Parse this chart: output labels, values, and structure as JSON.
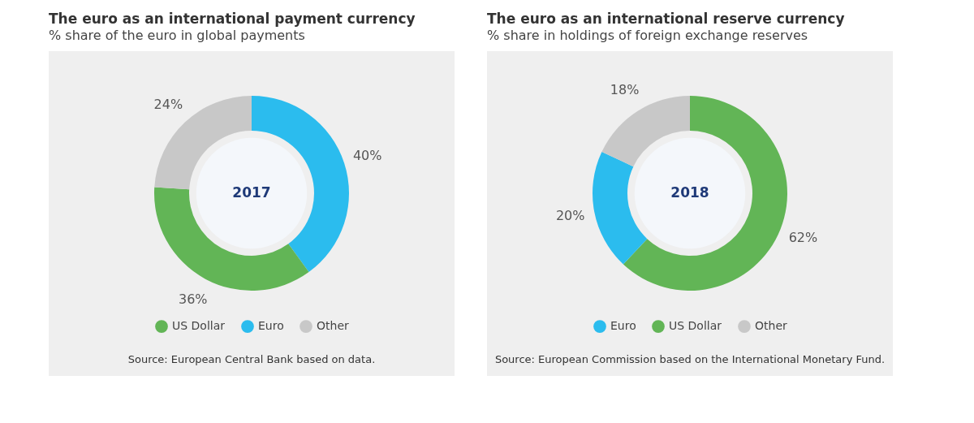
{
  "chart_data": [
    {
      "type": "donut",
      "title": "The euro as an international payment currency",
      "subtitle": "% share of the euro in global payments",
      "categories": [
        "Euro",
        "US Dollar",
        "Other"
      ],
      "values": [
        40,
        36,
        24
      ],
      "colors": [
        "#2bbcee",
        "#62b556",
        "#c8c8c8"
      ],
      "value_labels": [
        "40%",
        "36%",
        "24%"
      ],
      "legend": "bottom",
      "annotations": [
        "2017",
        "Source: European Central Bank based on data."
      ]
    },
    {
      "type": "donut",
      "title": "The euro as an international reserve currency",
      "subtitle": "% share in holdings of foreign exchange reserves",
      "categories": [
        "US Dollar",
        "Euro",
        "Other"
      ],
      "values": [
        62,
        20,
        18
      ],
      "colors": [
        "#62b556",
        "#2bbcee",
        "#c8c8c8"
      ],
      "value_labels": [
        "62%",
        "20%",
        "18%"
      ],
      "legend": "bottom",
      "annotations": [
        "2018",
        "Source: European Commission based on the International Monetary Fund."
      ]
    }
  ]
}
